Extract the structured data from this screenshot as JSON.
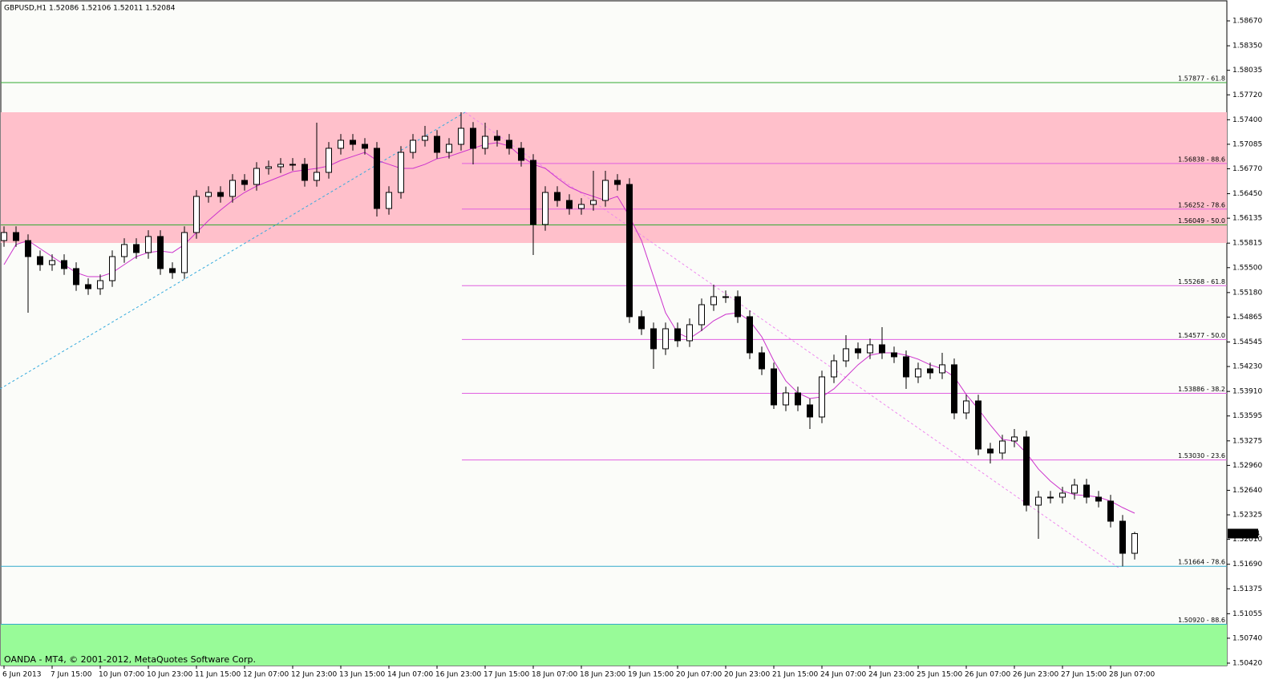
{
  "chart_data": {
    "type": "candlestick",
    "title": "GBPUSD,H1  1.52086 1.52106 1.52011 1.52084",
    "footer": "OANDA - MT4, © 2001-2012, MetaQuotes Software Corp.",
    "up_color": "#ffffff",
    "down_color": "#000000",
    "edge_color": "#000000",
    "categories": [
      "6 Jun 2013",
      null,
      null,
      null,
      "7 Jun 15:00",
      null,
      null,
      null,
      "10 Jun 07:00",
      null,
      null,
      null,
      "10 Jun 23:00",
      null,
      null,
      null,
      "11 Jun 15:00",
      null,
      null,
      null,
      "12 Jun 07:00",
      null,
      null,
      null,
      "12 Jun 23:00",
      null,
      null,
      null,
      "13 Jun 15:00",
      null,
      null,
      null,
      "14 Jun 07:00",
      null,
      null,
      null,
      "16 Jun 23:00",
      null,
      null,
      null,
      "17 Jun 15:00",
      null,
      null,
      null,
      "18 Jun 07:00",
      null,
      null,
      null,
      "18 Jun 23:00",
      null,
      null,
      null,
      "19 Jun 15:00",
      null,
      null,
      null,
      "20 Jun 07:00",
      null,
      null,
      null,
      "20 Jun 23:00",
      null,
      null,
      null,
      "21 Jun 15:00",
      null,
      null,
      null,
      "24 Jun 07:00",
      null,
      null,
      null,
      "24 Jun 23:00",
      null,
      null,
      null,
      "25 Jun 15:00",
      null,
      null,
      null,
      "26 Jun 07:00",
      null,
      null,
      null,
      "26 Jun 23:00",
      null,
      null,
      null,
      "27 Jun 15:00",
      null,
      null,
      null,
      "28 Jun 07:00",
      null,
      null
    ],
    "open": [
      1.55848,
      1.55951,
      1.55848,
      1.55642,
      1.55539,
      1.55591,
      1.55488,
      1.55282,
      1.5523,
      1.55333,
      1.55642,
      1.55797,
      1.55694,
      1.559,
      1.55488,
      1.55436,
      1.55951,
      1.56415,
      1.56466,
      1.56415,
      1.56621,
      1.56569,
      1.56775,
      1.56796,
      1.56827,
      1.56827,
      1.56621,
      1.56724,
      1.57033,
      1.57136,
      1.57084,
      1.57033,
      1.5626,
      1.56466,
      1.56981,
      1.57136,
      1.57187,
      1.56981,
      1.57084,
      1.5729,
      1.57033,
      1.57187,
      1.57136,
      1.57033,
      1.56878,
      1.56054,
      1.56466,
      1.56363,
      1.5626,
      1.56312,
      1.56363,
      1.56621,
      1.56569,
      1.5487,
      1.54715,
      1.54458,
      1.54715,
      1.54561,
      1.54767,
      1.55024,
      1.55127,
      1.55127,
      1.5487,
      1.54406,
      1.542,
      1.53737,
      1.53891,
      1.53737,
      1.53582,
      1.54097,
      1.54303,
      1.54458,
      1.54406,
      1.54509,
      1.54406,
      1.54355,
      1.54097,
      1.542,
      1.54149,
      1.54252,
      1.53634,
      1.53788,
      1.5317,
      1.53119,
      1.53273,
      1.53325,
      1.52449,
      1.52552,
      1.52552,
      1.52604,
      1.52707,
      1.52552,
      1.52501,
      1.52243,
      1.51831
    ],
    "high": [
      1.56031,
      1.56031,
      1.55928,
      1.55722,
      1.55671,
      1.55671,
      1.55568,
      1.55362,
      1.55413,
      1.55722,
      1.55877,
      1.55877,
      1.5598,
      1.5598,
      1.55568,
      1.56031,
      1.56495,
      1.56546,
      1.56546,
      1.56701,
      1.56701,
      1.56855,
      1.56876,
      1.56907,
      1.56907,
      1.56907,
      1.57362,
      1.57113,
      1.57216,
      1.57216,
      1.57164,
      1.57113,
      1.56546,
      1.57061,
      1.57216,
      1.57321,
      1.57267,
      1.57164,
      1.57496,
      1.5737,
      1.57362,
      1.57267,
      1.57216,
      1.57113,
      1.56958,
      1.56546,
      1.56546,
      1.56443,
      1.56392,
      1.56744,
      1.56744,
      1.56701,
      1.56649,
      1.5495,
      1.54795,
      1.54795,
      1.54795,
      1.54847,
      1.55104,
      1.55282,
      1.55207,
      1.55207,
      1.5495,
      1.54486,
      1.5428,
      1.53971,
      1.53971,
      1.53817,
      1.54177,
      1.54383,
      1.54633,
      1.54538,
      1.54589,
      1.54736,
      1.54486,
      1.54435,
      1.5428,
      1.5428,
      1.54406,
      1.54332,
      1.53868,
      1.53868,
      1.5325,
      1.53353,
      1.53428,
      1.53405,
      1.52632,
      1.52632,
      1.52684,
      1.52787,
      1.52787,
      1.52632,
      1.52581,
      1.52323,
      1.52106
    ],
    "low": [
      1.55768,
      1.55768,
      1.54921,
      1.55459,
      1.55459,
      1.55408,
      1.55202,
      1.5515,
      1.5515,
      1.55253,
      1.55562,
      1.55614,
      1.55614,
      1.55408,
      1.55356,
      1.55356,
      1.55871,
      1.56335,
      1.56335,
      1.56335,
      1.56489,
      1.56489,
      1.56695,
      1.56716,
      1.56747,
      1.56541,
      1.56541,
      1.56644,
      1.56953,
      1.57004,
      1.56953,
      1.56157,
      1.5618,
      1.56386,
      1.56901,
      1.57056,
      1.56901,
      1.56901,
      1.57004,
      1.56827,
      1.56953,
      1.57056,
      1.56953,
      1.56798,
      1.55663,
      1.55974,
      1.56283,
      1.5618,
      1.5618,
      1.56232,
      1.56283,
      1.56489,
      1.5479,
      1.54635,
      1.542,
      1.54378,
      1.54481,
      1.54481,
      1.54687,
      1.54944,
      1.55047,
      1.5479,
      1.54326,
      1.5412,
      1.53685,
      1.53657,
      1.53657,
      1.53428,
      1.53502,
      1.54017,
      1.54223,
      1.54326,
      1.54326,
      1.54326,
      1.54275,
      1.53943,
      1.54017,
      1.54069,
      1.54069,
      1.53554,
      1.53554,
      1.5309,
      1.52985,
      1.53039,
      1.53193,
      1.52369,
      1.52016,
      1.52472,
      1.52472,
      1.52524,
      1.52472,
      1.52421,
      1.52163,
      1.51664,
      1.51751
    ],
    "close": [
      1.55951,
      1.55848,
      1.55642,
      1.55539,
      1.55591,
      1.55488,
      1.55282,
      1.5523,
      1.55333,
      1.55642,
      1.55797,
      1.55694,
      1.559,
      1.55488,
      1.55436,
      1.55951,
      1.56415,
      1.56466,
      1.56415,
      1.56621,
      1.56569,
      1.56775,
      1.56796,
      1.56827,
      1.56827,
      1.56621,
      1.56724,
      1.57033,
      1.57136,
      1.57084,
      1.57033,
      1.5626,
      1.56466,
      1.56981,
      1.57136,
      1.57187,
      1.56981,
      1.57084,
      1.5729,
      1.57033,
      1.57187,
      1.57136,
      1.57033,
      1.56878,
      1.56054,
      1.56466,
      1.56363,
      1.5626,
      1.56312,
      1.56363,
      1.56621,
      1.56569,
      1.5487,
      1.54715,
      1.54458,
      1.54715,
      1.54561,
      1.54767,
      1.55024,
      1.55127,
      1.55127,
      1.5487,
      1.54406,
      1.542,
      1.53737,
      1.53891,
      1.53737,
      1.53582,
      1.54097,
      1.54303,
      1.54458,
      1.54406,
      1.54509,
      1.54406,
      1.54355,
      1.54097,
      1.542,
      1.54149,
      1.54252,
      1.53634,
      1.53788,
      1.5317,
      1.53119,
      1.53273,
      1.53325,
      1.52449,
      1.52552,
      1.52552,
      1.52604,
      1.52707,
      1.52552,
      1.52501,
      1.52243,
      1.51831,
      1.52084
    ],
    "ma": {
      "color": "#cc33cc",
      "values": [
        1.55539,
        1.55797,
        1.55848,
        1.55745,
        1.55642,
        1.55539,
        1.55436,
        1.55384,
        1.55384,
        1.55436,
        1.55539,
        1.55642,
        1.55694,
        1.55714,
        1.55694,
        1.55797,
        1.55951,
        1.56105,
        1.56239,
        1.56363,
        1.56466,
        1.56548,
        1.5661,
        1.56672,
        1.56734,
        1.56754,
        1.56775,
        1.56806,
        1.56878,
        1.56929,
        1.56981,
        1.56878,
        1.56827,
        1.56775,
        1.56775,
        1.56827,
        1.56899,
        1.56929,
        1.56981,
        1.57033,
        1.57084,
        1.57105,
        1.57063,
        1.56929,
        1.56827,
        1.56775,
        1.56651,
        1.56538,
        1.56466,
        1.56415,
        1.56363,
        1.56415,
        1.56157,
        1.55848,
        1.55384,
        1.54921,
        1.54663,
        1.54591,
        1.54694,
        1.54818,
        1.549,
        1.54921,
        1.54818,
        1.54612,
        1.54303,
        1.54045,
        1.53891,
        1.53819,
        1.5384,
        1.53943,
        1.54097,
        1.54252,
        1.54375,
        1.54406,
        1.54406,
        1.54375,
        1.54324,
        1.54252,
        1.542,
        1.54097,
        1.5387,
        1.53685,
        1.53479,
        1.53294,
        1.53273,
        1.53119,
        1.52913,
        1.52758,
        1.52634,
        1.52583,
        1.52573,
        1.52552,
        1.52501,
        1.52418,
        1.52346
      ]
    },
    "levels": [
      {
        "label": "1.57877 - 61.8",
        "value": 1.57877,
        "color": "#33aa33"
      },
      {
        "label": "1.56838 - 88.6",
        "value": 1.56838,
        "color": "#e060e0"
      },
      {
        "label": "1.56252 - 78.6",
        "value": 1.56252,
        "color": "#e060e0"
      },
      {
        "label": "1.56049 - 50.0",
        "value": 1.56049,
        "color": "#33aa33"
      },
      {
        "label": "1.55268 - 61.8",
        "value": 1.55268,
        "color": "#e060e0"
      },
      {
        "label": "1.54577 - 50.0",
        "value": 1.54577,
        "color": "#e060e0"
      },
      {
        "label": "1.53886 - 38.2",
        "value": 1.53886,
        "color": "#e060e0"
      },
      {
        "label": "1.53030 - 23.6",
        "value": 1.5303,
        "color": "#e060e0"
      },
      {
        "label": "1.51664 - 78.6",
        "value": 1.51664,
        "color": "#33aacc"
      },
      {
        "label": "1.50920 - 88.6",
        "value": 1.5092,
        "color": "#33aacc"
      }
    ],
    "zones": [
      {
        "from": 1.55817,
        "to": 1.57496,
        "color": "#ffc0cb"
      },
      {
        "from": 1.50389,
        "to": 1.5092,
        "color": "#98fb98"
      }
    ],
    "last_price": 1.52084,
    "ylim": [
      1.50389,
      1.58938
    ],
    "yticks": [
      {
        "value": 1.5867,
        "label": "1.58670"
      },
      {
        "value": 1.5835,
        "label": "1.58350"
      },
      {
        "value": 1.58035,
        "label": "1.58035"
      },
      {
        "value": 1.5772,
        "label": "1.57720"
      },
      {
        "value": 1.574,
        "label": "1.57400"
      },
      {
        "value": 1.57085,
        "label": "1.57085"
      },
      {
        "value": 1.5677,
        "label": "1.56770"
      },
      {
        "value": 1.5645,
        "label": "1.56450"
      },
      {
        "value": 1.56135,
        "label": "1.56135"
      },
      {
        "value": 1.55815,
        "label": "1.55815"
      },
      {
        "value": 1.555,
        "label": "1.55500"
      },
      {
        "value": 1.5518,
        "label": "1.55180"
      },
      {
        "value": 1.54865,
        "label": "1.54865"
      },
      {
        "value": 1.54545,
        "label": "1.54545"
      },
      {
        "value": 1.5423,
        "label": "1.54230"
      },
      {
        "value": 1.5391,
        "label": "1.53910"
      },
      {
        "value": 1.53595,
        "label": "1.53595"
      },
      {
        "value": 1.53275,
        "label": "1.53275"
      },
      {
        "value": 1.5296,
        "label": "1.52960"
      },
      {
        "value": 1.5264,
        "label": "1.52640"
      },
      {
        "value": 1.52325,
        "label": "1.52325"
      },
      {
        "value": 1.5201,
        "label": "1.52010"
      },
      {
        "value": 1.5169,
        "label": "1.51690"
      },
      {
        "value": 1.51375,
        "label": "1.51375"
      },
      {
        "value": 1.51055,
        "label": "1.51055"
      },
      {
        "value": 1.5074,
        "label": "1.50740"
      },
      {
        "value": 1.5042,
        "label": "1.50420"
      }
    ]
  }
}
